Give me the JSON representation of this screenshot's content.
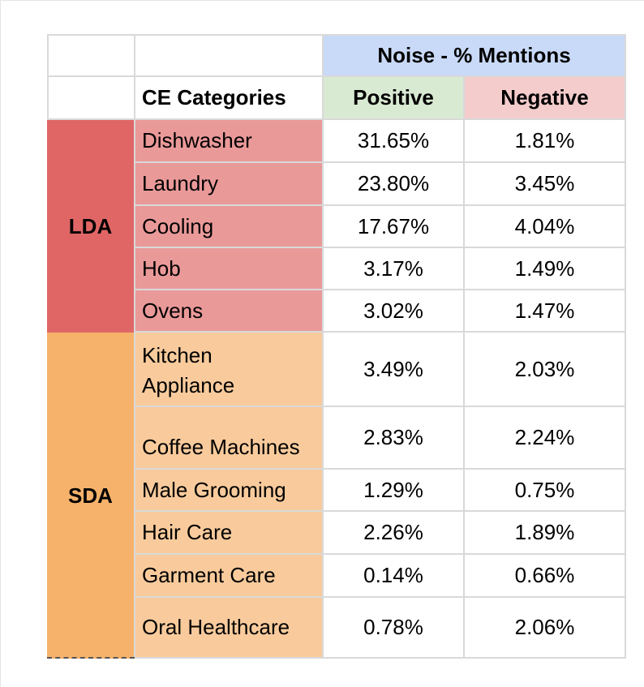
{
  "header": {
    "group_title": "Noise - % Mentions",
    "category_label": "CE Categories",
    "positive_label": "Positive",
    "negative_label": "Negative"
  },
  "groups": [
    {
      "label": "LDA",
      "color": "#e06666",
      "category_color": "#ea9999"
    },
    {
      "label": "SDA",
      "color": "#f6b26b",
      "category_color": "#f9cb9c"
    }
  ],
  "rows": [
    {
      "category": "Dishwasher",
      "positive": "31.65%",
      "negative": "1.81%"
    },
    {
      "category": "Laundry",
      "positive": "23.80%",
      "negative": "3.45%"
    },
    {
      "category": "Cooling",
      "positive": "17.67%",
      "negative": "4.04%"
    },
    {
      "category": "Hob",
      "positive": "3.17%",
      "negative": "1.49%"
    },
    {
      "category": "Ovens",
      "positive": "3.02%",
      "negative": "1.47%"
    },
    {
      "category_line1": "Kitchen",
      "category_line2": "Appliance",
      "positive": "3.49%",
      "negative": "2.03%"
    },
    {
      "category": "Coffee Machines",
      "positive": "2.83%",
      "negative": "2.24%"
    },
    {
      "category": "Male Grooming",
      "positive": "1.29%",
      "negative": "0.75%"
    },
    {
      "category": "Hair Care",
      "positive": "2.26%",
      "negative": "1.89%"
    },
    {
      "category": "Garment Care",
      "positive": "0.14%",
      "negative": "0.66%"
    },
    {
      "category": "Oral Healthcare",
      "positive": "0.78%",
      "negative": "2.06%"
    }
  ]
}
